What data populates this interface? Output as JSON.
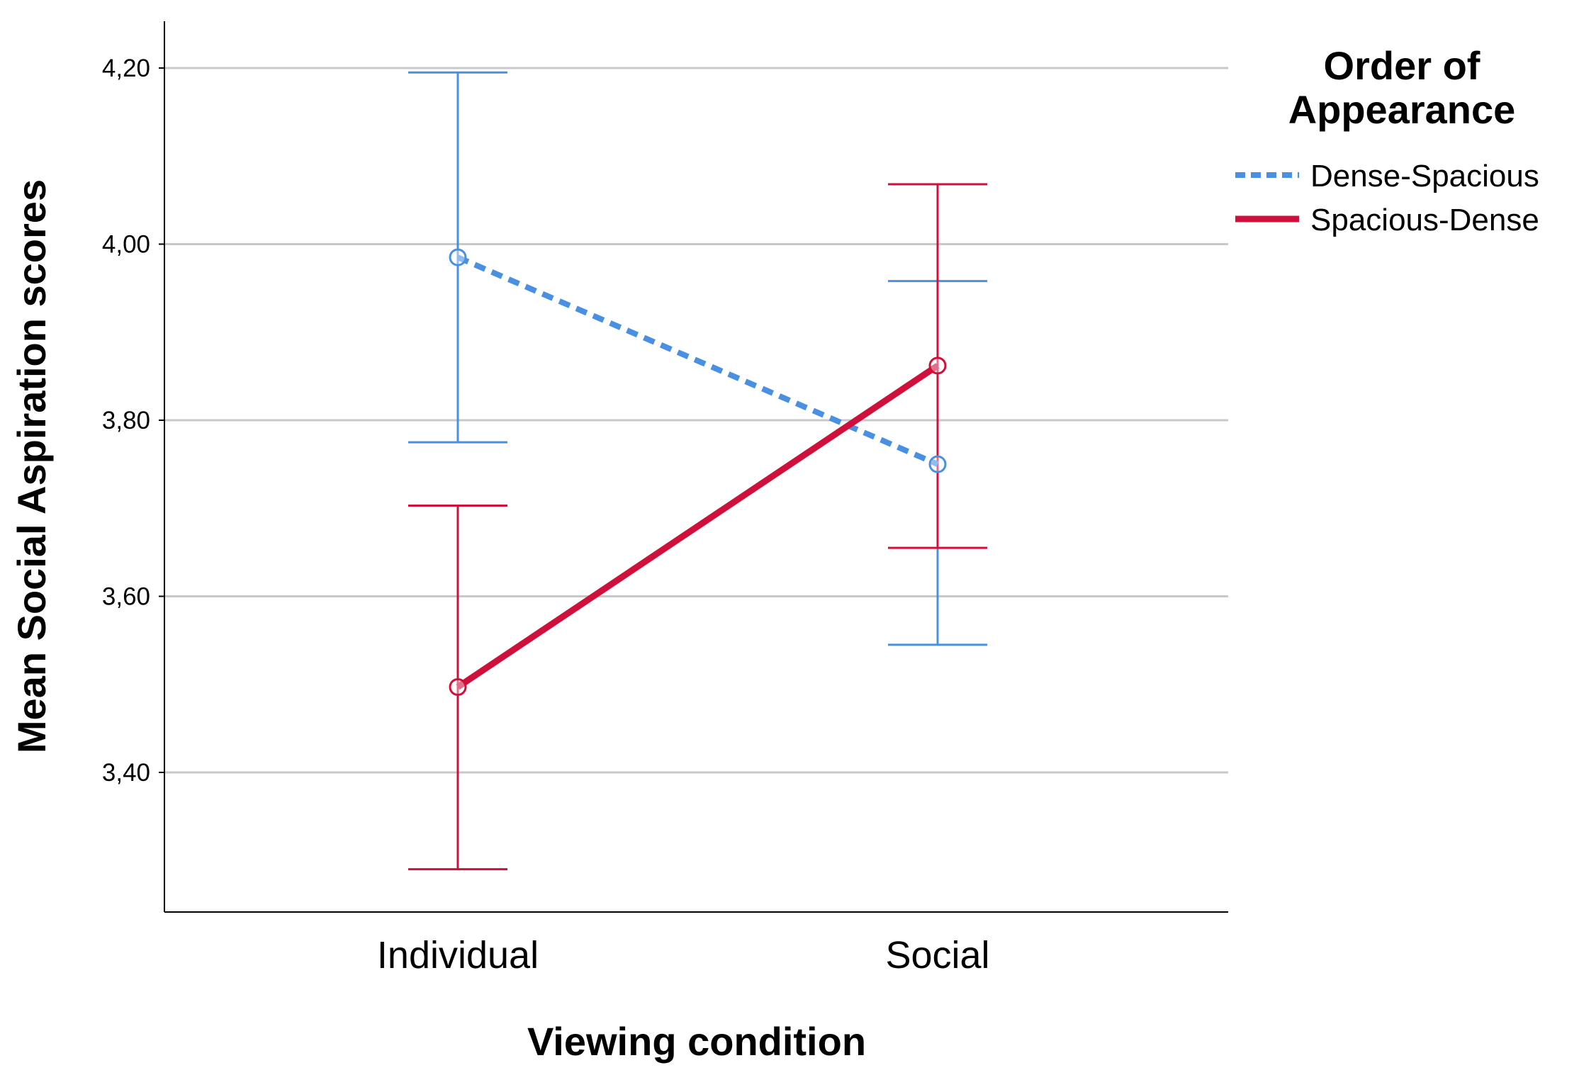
{
  "chart_data": {
    "type": "line",
    "xlabel": "Viewing condition",
    "ylabel": "Mean Social Aspiration scores",
    "categories": [
      "Individual",
      "Social"
    ],
    "ylim": [
      3.25,
      4.25
    ],
    "yticks": [
      3.4,
      3.6,
      3.8,
      4.0,
      4.2
    ],
    "ytick_labels": [
      "3,40",
      "3,60",
      "3,80",
      "4,00",
      "4,20"
    ],
    "grid": true,
    "legend": {
      "title_line1": "Order of",
      "title_line2": "Appearance",
      "placement": "top-right outside"
    },
    "series": [
      {
        "name": "Dense-Spacious",
        "color": "#4a90e2",
        "style": "dashed",
        "values": [
          3.985,
          3.75
        ],
        "error_low": [
          3.775,
          3.545
        ],
        "error_high": [
          4.195,
          3.958
        ]
      },
      {
        "name": "Spacious-Dense",
        "color": "#d0103a",
        "style": "solid",
        "values": [
          3.497,
          3.862
        ],
        "error_low": [
          3.29,
          3.655
        ],
        "error_high": [
          3.703,
          4.068
        ]
      }
    ]
  }
}
